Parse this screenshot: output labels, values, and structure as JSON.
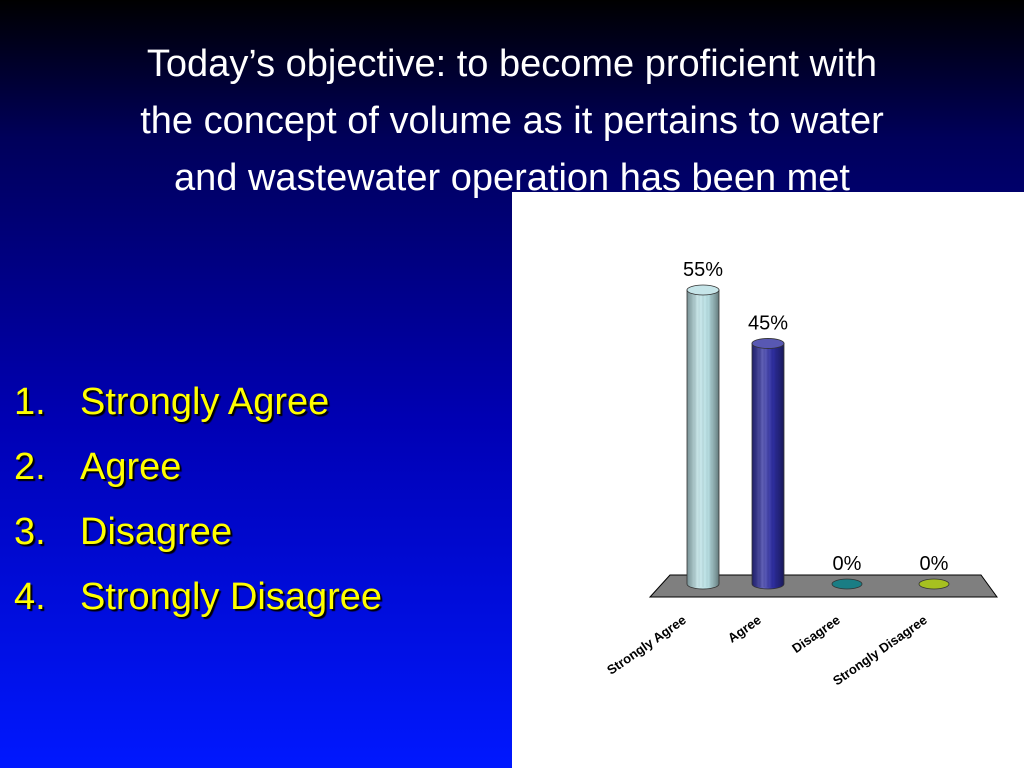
{
  "title": "Today’s objective: to become proficient with the concept of volume as it pertains to water and wastewater operation has been met",
  "title_lines": [
    "Today’s objective: to become proficient with",
    "the concept of volume as it pertains to water",
    "and wastewater operation has been met"
  ],
  "options": [
    {
      "number": "1.",
      "label": "Strongly Agree"
    },
    {
      "number": "2.",
      "label": "Agree"
    },
    {
      "number": "3.",
      "label": "Disagree"
    },
    {
      "number": "4.",
      "label": "Strongly Disagree"
    }
  ],
  "colors": {
    "background_top": "#000000",
    "background_bottom": "#0018ff",
    "title_text": "#ffffff",
    "option_text": "#ffff00",
    "floor": "#7f7f7f"
  },
  "chart_data": {
    "type": "bar",
    "title": "",
    "xlabel": "",
    "ylabel": "",
    "categories": [
      "Strongly Agree",
      "Agree",
      "Disagree",
      "Strongly Disagree"
    ],
    "values": [
      55,
      45,
      0,
      0
    ],
    "value_labels": [
      "55%",
      "45%",
      "0%",
      "0%"
    ],
    "colors": [
      "#b8dfe3",
      "#2e2ea0",
      "#1a7d84",
      "#a6c020"
    ],
    "ylim": [
      0,
      55
    ],
    "grid": false,
    "legend": "none",
    "style": "3D cylinders on gray floor, rotated category labels"
  }
}
